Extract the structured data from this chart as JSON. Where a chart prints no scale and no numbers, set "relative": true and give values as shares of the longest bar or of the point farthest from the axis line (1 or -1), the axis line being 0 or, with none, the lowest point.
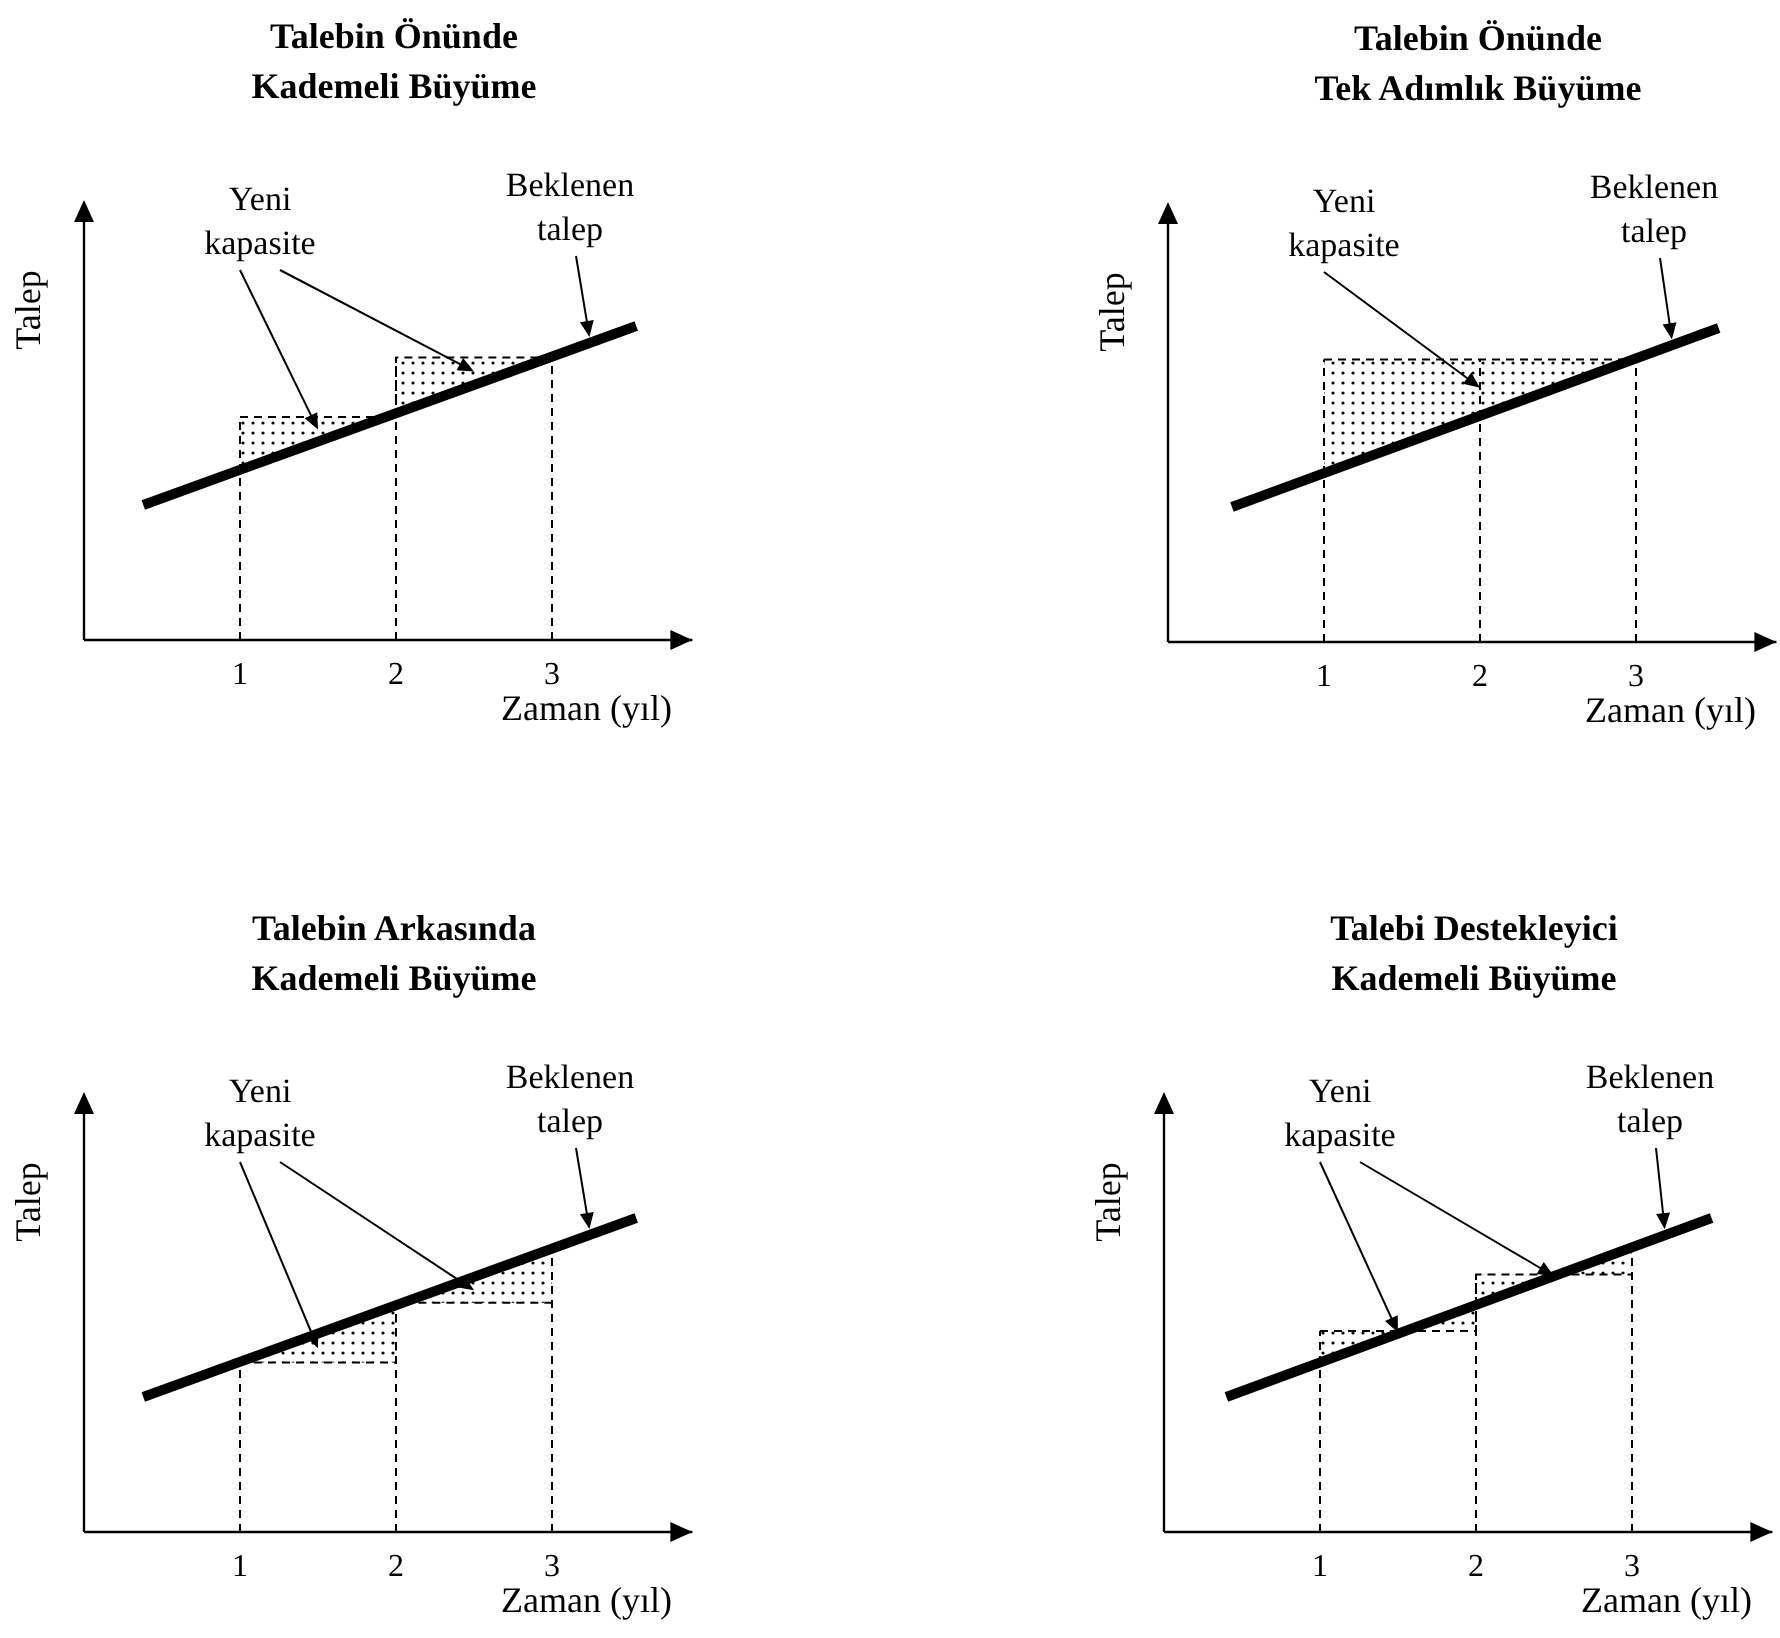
{
  "chart_data": [
    {
      "type": "line",
      "title": "Talebin Önünde\nKademeli Büyüme",
      "xlabel": "Zaman (yıl)",
      "ylabel": "Talep",
      "relative": true,
      "xlim": [
        0,
        3.9
      ],
      "xticks": [
        1,
        2,
        3
      ],
      "annotations": [
        "Yeni kapasite",
        "Beklenen talep"
      ],
      "ref_lines": [
        {
          "axis": "x",
          "value": 1,
          "color": "#000000",
          "line_style": "dashed"
        },
        {
          "axis": "x",
          "value": 2,
          "color": "#000000",
          "line_style": "dashed"
        },
        {
          "axis": "x",
          "value": 3,
          "color": "#000000",
          "line_style": "dashed"
        }
      ],
      "series": [
        {
          "type": "line",
          "color": "#000000",
          "x": [
            0.38,
            3.54
          ],
          "values": [
            0.43,
            1
          ]
        },
        {
          "type": "step",
          "color": "#000000",
          "line_style": "dashed",
          "x": [
            1,
            2,
            3
          ],
          "values": [
            0.71,
            0.9,
            0.9
          ],
          "lower": [
            0.54,
            0.72,
            0.9
          ],
          "upper": [
            0.71,
            0.9,
            0.9
          ]
        }
      ]
    },
    {
      "type": "line",
      "title": "Talebin Önünde\nTek Adımlık Büyüme",
      "xlabel": "Zaman (yıl)",
      "ylabel": "Talep",
      "relative": true,
      "xlim": [
        0,
        3.9
      ],
      "xticks": [
        1,
        2,
        3
      ],
      "annotations": [
        "Yeni kapasite",
        "Beklenen talep"
      ],
      "ref_lines": [
        {
          "axis": "x",
          "value": 1,
          "color": "#000000",
          "line_style": "dashed"
        },
        {
          "axis": "x",
          "value": 2,
          "color": "#000000",
          "line_style": "dashed"
        },
        {
          "axis": "x",
          "value": 3,
          "color": "#000000",
          "line_style": "dashed"
        }
      ],
      "series": [
        {
          "type": "line",
          "color": "#000000",
          "x": [
            0.41,
            3.53
          ],
          "values": [
            0.43,
            1
          ]
        },
        {
          "type": "step",
          "color": "#000000",
          "line_style": "dashed",
          "x": [
            1,
            3
          ],
          "values": [
            0.9,
            0.9
          ],
          "lower": [
            0.54,
            0.9
          ],
          "upper": [
            0.9,
            0.9
          ]
        }
      ]
    },
    {
      "type": "line",
      "title": "Talebin Arkasında\nKademeli Büyüme",
      "xlabel": "Zaman (yıl)",
      "ylabel": "Talep",
      "relative": true,
      "xlim": [
        0,
        3.9
      ],
      "xticks": [
        1,
        2,
        3
      ],
      "annotations": [
        "Yeni kapasite",
        "Beklenen talep"
      ],
      "ref_lines": [
        {
          "axis": "x",
          "value": 1,
          "color": "#000000",
          "line_style": "dashed"
        },
        {
          "axis": "x",
          "value": 2,
          "color": "#000000",
          "line_style": "dashed"
        },
        {
          "axis": "x",
          "value": 3,
          "color": "#000000",
          "line_style": "dashed"
        }
      ],
      "series": [
        {
          "type": "line",
          "color": "#000000",
          "x": [
            0.38,
            3.54
          ],
          "values": [
            0.43,
            1
          ]
        },
        {
          "type": "step",
          "color": "#000000",
          "line_style": "dashed",
          "x": [
            1,
            2,
            3
          ],
          "values": [
            0.54,
            0.73,
            0.73
          ],
          "lower": [
            0.54,
            0.73,
            0.73
          ],
          "upper": [
            0.54,
            0.72,
            0.9
          ]
        }
      ]
    },
    {
      "type": "line",
      "title": "Talebi Destekleyici\nKademeli Büyüme",
      "xlabel": "Zaman (yıl)",
      "ylabel": "Talep",
      "relative": true,
      "xlim": [
        0,
        3.9
      ],
      "xticks": [
        1,
        2,
        3
      ],
      "annotations": [
        "Yeni kapasite",
        "Beklenen talep"
      ],
      "ref_lines": [
        {
          "axis": "x",
          "value": 1,
          "color": "#000000",
          "line_style": "dashed"
        },
        {
          "axis": "x",
          "value": 2,
          "color": "#000000",
          "line_style": "dashed"
        },
        {
          "axis": "x",
          "value": 3,
          "color": "#000000",
          "line_style": "dashed"
        }
      ],
      "series": [
        {
          "type": "line",
          "color": "#000000",
          "x": [
            0.4,
            3.51
          ],
          "values": [
            0.43,
            1
          ]
        },
        {
          "type": "step",
          "color": "#000000",
          "line_style": "dashed",
          "x": [
            1,
            2,
            3
          ],
          "values": [
            0.64,
            0.82,
            0.82
          ],
          "lower": [
            0.54,
            0.72,
            0.9
          ],
          "upper": [
            0.64,
            0.82,
            0.82
          ]
        }
      ]
    }
  ]
}
